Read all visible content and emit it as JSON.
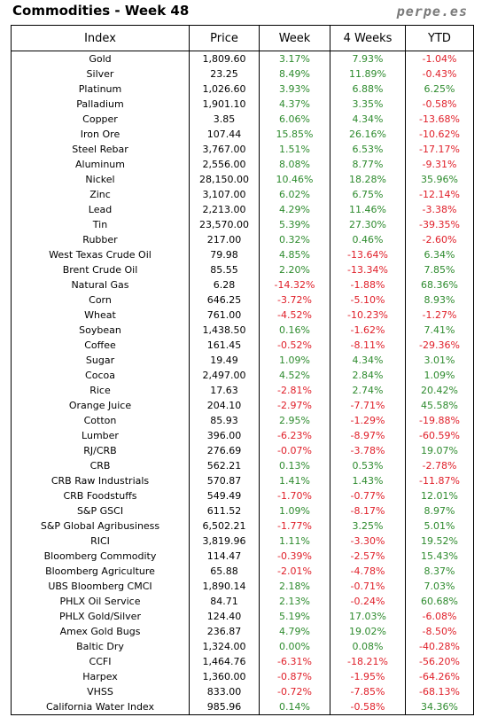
{
  "header": {
    "title": "Commodities - Week 48",
    "site": "perpe.es"
  },
  "columns": [
    "Index",
    "Price",
    "Week",
    "4 Weeks",
    "YTD"
  ],
  "colors": {
    "positive": "#2e8b2e",
    "negative": "#e0202a"
  },
  "rows": [
    [
      "Gold",
      "1,809.60",
      "3.17%",
      "7.93%",
      "-1.04%"
    ],
    [
      "Silver",
      "23.25",
      "8.49%",
      "11.89%",
      "-0.43%"
    ],
    [
      "Platinum",
      "1,026.60",
      "3.93%",
      "6.88%",
      "6.25%"
    ],
    [
      "Palladium",
      "1,901.10",
      "4.37%",
      "3.35%",
      "-0.58%"
    ],
    [
      "Copper",
      "3.85",
      "6.06%",
      "4.34%",
      "-13.68%"
    ],
    [
      "Iron Ore",
      "107.44",
      "15.85%",
      "26.16%",
      "-10.62%"
    ],
    [
      "Steel Rebar",
      "3,767.00",
      "1.51%",
      "6.53%",
      "-17.17%"
    ],
    [
      "Aluminum",
      "2,556.00",
      "8.08%",
      "8.77%",
      "-9.31%"
    ],
    [
      "Nickel",
      "28,150.00",
      "10.46%",
      "18.28%",
      "35.96%"
    ],
    [
      "Zinc",
      "3,107.00",
      "6.02%",
      "6.75%",
      "-12.14%"
    ],
    [
      "Lead",
      "2,213.00",
      "4.29%",
      "11.46%",
      "-3.38%"
    ],
    [
      "Tin",
      "23,570.00",
      "5.39%",
      "27.30%",
      "-39.35%"
    ],
    [
      "Rubber",
      "217.00",
      "0.32%",
      "0.46%",
      "-2.60%"
    ],
    [
      "West Texas Crude Oil",
      "79.98",
      "4.85%",
      "-13.64%",
      "6.34%"
    ],
    [
      "Brent Crude Oil",
      "85.55",
      "2.20%",
      "-13.34%",
      "7.85%"
    ],
    [
      "Natural Gas",
      "6.28",
      "-14.32%",
      "-1.88%",
      "68.36%"
    ],
    [
      "Corn",
      "646.25",
      "-3.72%",
      "-5.10%",
      "8.93%"
    ],
    [
      "Wheat",
      "761.00",
      "-4.52%",
      "-10.23%",
      "-1.27%"
    ],
    [
      "Soybean",
      "1,438.50",
      "0.16%",
      "-1.62%",
      "7.41%"
    ],
    [
      "Coffee",
      "161.45",
      "-0.52%",
      "-8.11%",
      "-29.36%"
    ],
    [
      "Sugar",
      "19.49",
      "1.09%",
      "4.34%",
      "3.01%"
    ],
    [
      "Cocoa",
      "2,497.00",
      "4.52%",
      "2.84%",
      "1.09%"
    ],
    [
      "Rice",
      "17.63",
      "-2.81%",
      "2.74%",
      "20.42%"
    ],
    [
      "Orange Juice",
      "204.10",
      "-2.97%",
      "-7.71%",
      "45.58%"
    ],
    [
      "Cotton",
      "85.93",
      "2.95%",
      "-1.29%",
      "-19.88%"
    ],
    [
      "Lumber",
      "396.00",
      "-6.23%",
      "-8.97%",
      "-60.59%"
    ],
    [
      "RJ/CRB",
      "276.69",
      "-0.07%",
      "-3.78%",
      "19.07%"
    ],
    [
      "CRB",
      "562.21",
      "0.13%",
      "0.53%",
      "-2.78%"
    ],
    [
      "CRB Raw Industrials",
      "570.87",
      "1.41%",
      "1.43%",
      "-11.87%"
    ],
    [
      "CRB Foodstuffs",
      "549.49",
      "-1.70%",
      "-0.77%",
      "12.01%"
    ],
    [
      "S&P GSCI",
      "611.52",
      "1.09%",
      "-8.17%",
      "8.97%"
    ],
    [
      "S&P Global Agribusiness",
      "6,502.21",
      "-1.77%",
      "3.25%",
      "5.01%"
    ],
    [
      "RICI",
      "3,819.96",
      "1.11%",
      "-3.30%",
      "19.52%"
    ],
    [
      "Bloomberg Commodity",
      "114.47",
      "-0.39%",
      "-2.57%",
      "15.43%"
    ],
    [
      "Bloomberg Agriculture",
      "65.88",
      "-2.01%",
      "-4.78%",
      "8.37%"
    ],
    [
      "UBS Bloomberg CMCI",
      "1,890.14",
      "2.18%",
      "-0.71%",
      "7.03%"
    ],
    [
      "PHLX Oil Service",
      "84.71",
      "2.13%",
      "-0.24%",
      "60.68%"
    ],
    [
      "PHLX Gold/Silver",
      "124.40",
      "5.19%",
      "17.03%",
      "-6.08%"
    ],
    [
      "Amex Gold Bugs",
      "236.87",
      "4.79%",
      "19.02%",
      "-8.50%"
    ],
    [
      "Baltic Dry",
      "1,324.00",
      "0.00%",
      "0.08%",
      "-40.28%"
    ],
    [
      "CCFI",
      "1,464.76",
      "-6.31%",
      "-18.21%",
      "-56.20%"
    ],
    [
      "Harpex",
      "1,360.00",
      "-0.87%",
      "-1.95%",
      "-64.26%"
    ],
    [
      "VHSS",
      "833.00",
      "-0.72%",
      "-7.85%",
      "-68.13%"
    ],
    [
      "California Water Index",
      "985.96",
      "0.14%",
      "-0.58%",
      "34.36%"
    ]
  ]
}
